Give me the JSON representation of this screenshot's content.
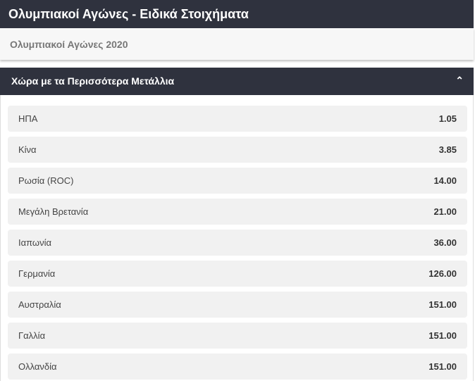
{
  "header": {
    "title": "Ολυμπιακοί Αγώνες - Ειδικά Στοιχήματα"
  },
  "subheader": {
    "title": "Ολυμπιακοί Αγώνες 2020"
  },
  "market": {
    "title": "Χώρα με τα Περισσότερα Μετάλλια",
    "toggle_icon": "chevron-up-icon",
    "rows": [
      {
        "name": "ΗΠΑ",
        "odds": "1.05"
      },
      {
        "name": "Κίνα",
        "odds": "3.85"
      },
      {
        "name": "Ρωσία (ROC)",
        "odds": "14.00"
      },
      {
        "name": "Μεγάλη Βρετανία",
        "odds": "21.00"
      },
      {
        "name": "Ιαπωνία",
        "odds": "36.00"
      },
      {
        "name": "Γερμανία",
        "odds": "126.00"
      },
      {
        "name": "Αυστραλία",
        "odds": "151.00"
      },
      {
        "name": "Γαλλία",
        "odds": "151.00"
      },
      {
        "name": "Ολλανδία",
        "odds": "151.00"
      }
    ]
  }
}
